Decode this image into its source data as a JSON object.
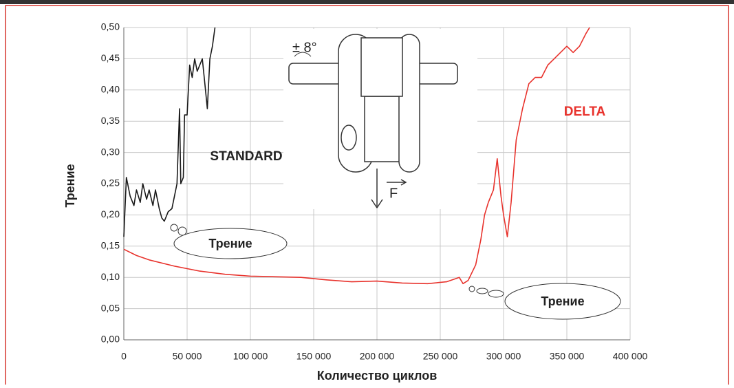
{
  "chart_data": {
    "type": "line",
    "x_label": "Количество циклов",
    "y_label": "Трение",
    "xlim": [
      0,
      400000
    ],
    "ylim": [
      0,
      0.5
    ],
    "xticks": [
      0,
      {
        "value": 50000,
        "label": "50 000"
      },
      {
        "value": 100000,
        "label": "100 000"
      },
      {
        "value": 150000,
        "label": "150 000"
      },
      {
        "value": 200000,
        "label": "200 000"
      },
      {
        "value": 250000,
        "label": "250 000"
      },
      {
        "value": 300000,
        "label": "300 000"
      },
      {
        "value": 350000,
        "label": "350 000"
      },
      {
        "value": 400000,
        "label": "400 000"
      }
    ],
    "yticks": [
      {
        "value": 0,
        "label": "0,00"
      },
      {
        "value": 0.05,
        "label": "0,05"
      },
      {
        "value": 0.1,
        "label": "0,10"
      },
      {
        "value": 0.15,
        "label": "0,15"
      },
      {
        "value": 0.2,
        "label": "0,20"
      },
      {
        "value": 0.25,
        "label": "0,25"
      },
      {
        "value": 0.3,
        "label": "0,30"
      },
      {
        "value": 0.35,
        "label": "0,35"
      },
      {
        "value": 0.4,
        "label": "0,40"
      },
      {
        "value": 0.45,
        "label": "0,45"
      },
      {
        "value": 0.5,
        "label": "0,50"
      }
    ],
    "grid": true,
    "series": [
      {
        "color": "#1a1a1a",
        "x": [
          0,
          2000,
          5000,
          8000,
          10000,
          13000,
          15000,
          18000,
          20000,
          23000,
          25000,
          28000,
          30000,
          32000,
          35000,
          38000,
          40000,
          42000,
          44000,
          45000,
          47000,
          48000,
          50000,
          52000,
          54000,
          56000,
          58000,
          60000,
          62000,
          64000,
          66000,
          68000,
          70000,
          72000
        ],
        "values": [
          0.165,
          0.26,
          0.23,
          0.215,
          0.24,
          0.22,
          0.25,
          0.225,
          0.24,
          0.215,
          0.24,
          0.21,
          0.195,
          0.19,
          0.205,
          0.21,
          0.23,
          0.25,
          0.37,
          0.25,
          0.26,
          0.36,
          0.36,
          0.44,
          0.42,
          0.45,
          0.43,
          0.44,
          0.45,
          0.41,
          0.37,
          0.45,
          0.47,
          0.5
        ]
      },
      {
        "color": "#e8322c",
        "x": [
          0,
          10000,
          20000,
          40000,
          60000,
          80000,
          100000,
          120000,
          140000,
          160000,
          180000,
          200000,
          220000,
          240000,
          255000,
          265000,
          268000,
          272000,
          278000,
          282000,
          285000,
          288000,
          292000,
          295000,
          298000,
          300000,
          303000,
          306000,
          310000,
          315000,
          320000,
          325000,
          330000,
          335000,
          340000,
          345000,
          350000,
          355000,
          360000,
          365000,
          368000
        ],
        "values": [
          0.145,
          0.135,
          0.128,
          0.118,
          0.11,
          0.105,
          0.102,
          0.101,
          0.1,
          0.096,
          0.093,
          0.094,
          0.091,
          0.09,
          0.093,
          0.1,
          0.09,
          0.095,
          0.12,
          0.16,
          0.2,
          0.22,
          0.24,
          0.29,
          0.23,
          0.2,
          0.165,
          0.22,
          0.32,
          0.37,
          0.41,
          0.42,
          0.42,
          0.44,
          0.45,
          0.46,
          0.47,
          0.46,
          0.47,
          0.49,
          0.5
        ]
      }
    ],
    "annotations": [
      "STANDARD",
      "DELTA",
      "Трение",
      "Трение",
      "± 8°",
      "F"
    ]
  }
}
